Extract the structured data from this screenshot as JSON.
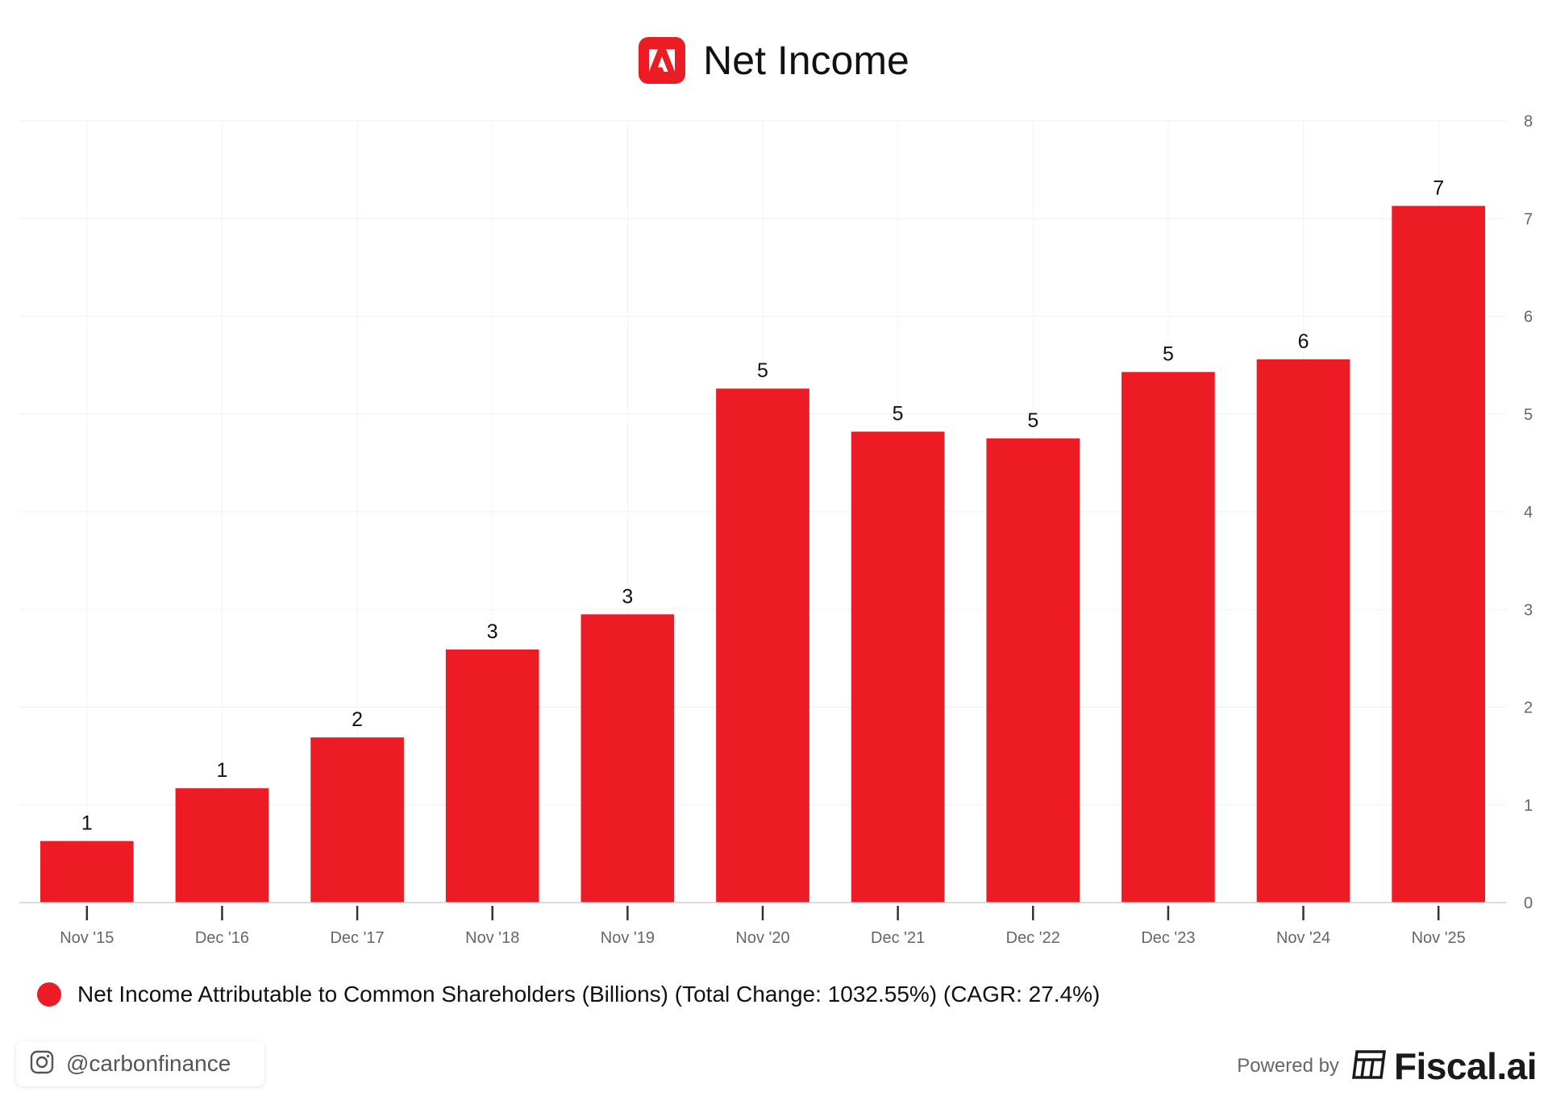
{
  "header": {
    "title": "Net Income",
    "logo_icon": "adobe-logo-icon",
    "logo_color": "#EB1C24"
  },
  "chart_data": {
    "type": "bar",
    "title": "Net Income",
    "categories": [
      "Nov '15",
      "Dec '16",
      "Dec '17",
      "Nov '18",
      "Nov '19",
      "Nov '20",
      "Dec '21",
      "Dec '22",
      "Dec '23",
      "Nov '24",
      "Nov '25"
    ],
    "values": [
      0.63,
      1.17,
      1.69,
      2.59,
      2.95,
      5.26,
      4.82,
      4.75,
      5.43,
      5.56,
      7.13
    ],
    "data_labels": [
      "1",
      "1",
      "2",
      "3",
      "3",
      "5",
      "5",
      "5",
      "5",
      "6",
      "7"
    ],
    "ylim": [
      0,
      8
    ],
    "yticks": [
      "0",
      "1",
      "2",
      "3",
      "4",
      "5",
      "6",
      "7",
      "8"
    ],
    "y_axis_position": "right",
    "grid": true,
    "bar_color": "#ED1C24",
    "series": [
      {
        "name": "Net Income Attributable to Common Shareholders (Billions) (Total Change: 1032.55%) (CAGR: 27.4%)"
      }
    ],
    "legend_position": "bottom-left"
  },
  "legend": {
    "label": "Net Income Attributable to Common Shareholders (Billions) (Total Change: 1032.55%) (CAGR: 27.4%)",
    "color": "#ED1C24"
  },
  "footer": {
    "handle": "@carbonfinance",
    "handle_icon": "instagram-icon",
    "powered_by": "Powered by",
    "brand": "Fiscal.ai",
    "brand_icon": "fiscal-ai-logo-icon"
  }
}
